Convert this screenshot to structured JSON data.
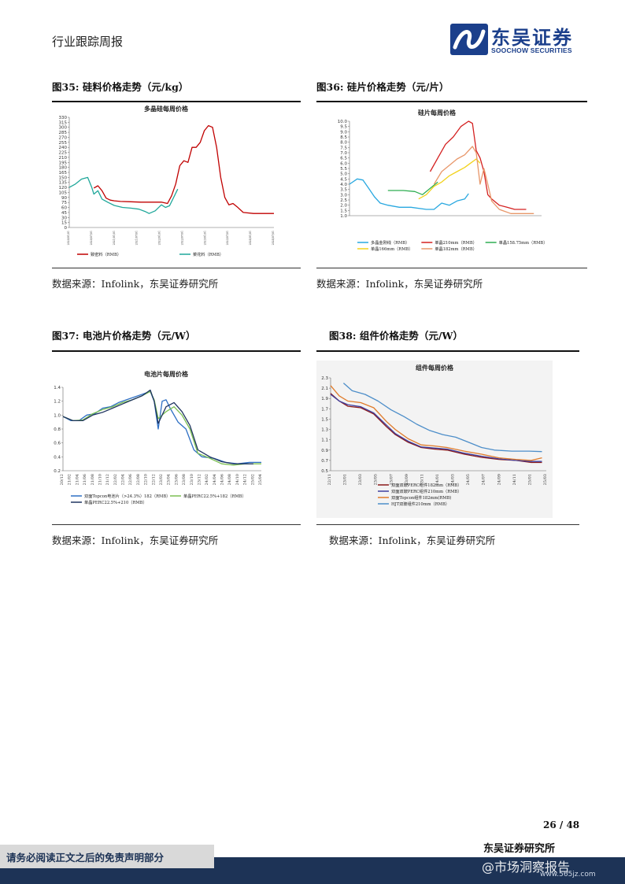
{
  "header": {
    "title": "行业跟踪周报",
    "logo_cn": "东吴证券",
    "logo_en": "SOOCHOW SECURITIES"
  },
  "figures": [
    {
      "label": "图35:  硅料价格走势（元/kg）",
      "source": "数据来源：Infolink，东吴证券研究所"
    },
    {
      "label": "图36:  硅片价格走势（元/片）",
      "source": "数据来源：Infolink，东吴证券研究所"
    },
    {
      "label": "图37:  电池片价格走势（元/W）",
      "source": "数据来源：Infolink，东吴证券研究所"
    },
    {
      "label": "图38:  组件价格走势（元/W）",
      "source": "数据来源：Infolink，东吴证券研究所"
    }
  ],
  "footer": {
    "page": "26  /  48",
    "org": "东吴证券研究所",
    "disclaimer": "请务必阅读正文之后的免责声明部分",
    "watermark": "@市场洞察报告",
    "watermark_url": "www.565jz.com"
  },
  "chart_data": [
    {
      "type": "line",
      "title": "多晶硅每周价格",
      "ylim": [
        0,
        330
      ],
      "yticks": [
        0,
        15,
        30,
        45,
        60,
        75,
        90,
        105,
        120,
        135,
        150,
        165,
        180,
        195,
        210,
        225,
        240,
        255,
        270,
        285,
        300,
        315,
        330
      ],
      "x_labels": [
        "2020/01/01",
        "2020/07/01",
        "2021/01/01",
        "2021/07/01",
        "2022/01/01",
        "2022/07/01",
        "2023/01/01",
        "2023/07/01",
        "2024/01/01",
        "2024/07/01"
      ],
      "series": [
        {
          "name": "致密料（RMB）",
          "color": "#c00000",
          "x": [
            0.12,
            0.14,
            0.16,
            0.18,
            0.2,
            0.22,
            0.25,
            0.3,
            0.35,
            0.4,
            0.45,
            0.48,
            0.5,
            0.52,
            0.54,
            0.56,
            0.58,
            0.6,
            0.62,
            0.64,
            0.66,
            0.68,
            0.7,
            0.72,
            0.74,
            0.76,
            0.78,
            0.8,
            0.82,
            0.85,
            0.9,
            1.0
          ],
          "values": [
            118,
            125,
            110,
            88,
            82,
            80,
            78,
            77,
            76,
            76,
            76,
            72,
            95,
            130,
            185,
            200,
            195,
            240,
            240,
            255,
            290,
            305,
            300,
            240,
            150,
            90,
            68,
            72,
            62,
            45,
            42,
            42
          ]
        },
        {
          "name": "菜花料（RMB）",
          "color": "#1fa79a",
          "x": [
            0.0,
            0.03,
            0.06,
            0.09,
            0.11,
            0.12,
            0.14,
            0.16,
            0.19,
            0.22,
            0.26,
            0.3,
            0.34,
            0.37,
            0.39,
            0.42,
            0.45,
            0.47,
            0.49,
            0.51,
            0.53
          ],
          "values": [
            120,
            130,
            145,
            150,
            120,
            100,
            110,
            85,
            75,
            66,
            60,
            58,
            55,
            48,
            42,
            50,
            68,
            60,
            65,
            90,
            115
          ]
        }
      ]
    },
    {
      "type": "line",
      "title": "硅片每周价格",
      "ylim": [
        1.0,
        10.0
      ],
      "yticks": [
        1.0,
        1.5,
        2.0,
        2.5,
        3.0,
        3.5,
        4.0,
        4.5,
        5.0,
        5.5,
        6.0,
        6.5,
        7.0,
        7.5,
        8.0,
        8.5,
        9.0,
        9.5,
        10.0
      ],
      "series": [
        {
          "name": "多晶金刚线（RMB）",
          "color": "#29a8e0",
          "x": [
            0.0,
            0.04,
            0.07,
            0.1,
            0.13,
            0.16,
            0.2,
            0.26,
            0.32,
            0.4,
            0.44,
            0.48,
            0.52,
            0.56,
            0.6,
            0.62
          ],
          "values": [
            4.0,
            4.5,
            4.4,
            3.6,
            2.8,
            2.2,
            2.0,
            1.8,
            1.8,
            1.6,
            1.6,
            2.2,
            2.0,
            2.4,
            2.6,
            3.1
          ]
        },
        {
          "name": "单晶210mm（RMB）",
          "color": "#d42020",
          "x": [
            0.42,
            0.46,
            0.5,
            0.54,
            0.58,
            0.62,
            0.64,
            0.66,
            0.68,
            0.7,
            0.72,
            0.74,
            0.78,
            0.82,
            0.86,
            0.92
          ],
          "values": [
            5.2,
            6.5,
            7.8,
            8.5,
            9.5,
            10.0,
            9.8,
            7.2,
            6.5,
            5.2,
            3.0,
            2.6,
            2.0,
            1.8,
            1.6,
            1.6
          ]
        },
        {
          "name": "单晶158.75mm（RMB）",
          "color": "#2fae52",
          "x": [
            0.2,
            0.28,
            0.34,
            0.38,
            0.42,
            0.46
          ],
          "values": [
            3.4,
            3.4,
            3.3,
            3.0,
            3.6,
            4.2
          ]
        },
        {
          "name": "单晶166mm（RMB）",
          "color": "#f2d21c",
          "x": [
            0.36,
            0.4,
            0.44,
            0.48,
            0.52,
            0.56,
            0.6,
            0.63,
            0.66,
            0.68
          ],
          "values": [
            2.6,
            3.0,
            3.8,
            4.2,
            4.8,
            5.2,
            5.6,
            6.0,
            6.4,
            6.0
          ]
        },
        {
          "name": "单晶182mm（RMB）",
          "color": "#e8976a",
          "x": [
            0.44,
            0.48,
            0.52,
            0.56,
            0.6,
            0.64,
            0.66,
            0.68,
            0.7,
            0.72,
            0.74,
            0.78,
            0.84,
            0.9,
            0.96
          ],
          "values": [
            4.0,
            5.2,
            5.8,
            6.4,
            6.8,
            7.6,
            7.0,
            4.0,
            5.5,
            4.0,
            2.4,
            1.6,
            1.2,
            1.2,
            1.2
          ]
        }
      ]
    },
    {
      "type": "line",
      "title": "电池片每周价格",
      "ylim": [
        0.2,
        1.4
      ],
      "yticks": [
        0.2,
        0.4,
        0.6,
        0.8,
        1.0,
        1.2,
        1.4
      ],
      "x_labels": [
        "20/12",
        "21/02",
        "21/04",
        "21/06",
        "21/08",
        "21/10",
        "21/12",
        "22/02",
        "22/04",
        "22/06",
        "22/08",
        "22/10",
        "22/12",
        "23/02",
        "23/04",
        "23/06",
        "23/08",
        "23/10",
        "23/12",
        "24/02",
        "24/04",
        "24/06",
        "24/08",
        "24/10",
        "24/12",
        "25/02",
        "25/04"
      ],
      "series": [
        {
          "name": "双面Topcon电池片（>24.3%）182（RMB）",
          "color": "#2e6fc4",
          "x": [
            0.0,
            0.04,
            0.08,
            0.12,
            0.16,
            0.2,
            0.24,
            0.28,
            0.32,
            0.36,
            0.4,
            0.44,
            0.46,
            0.48,
            0.5,
            0.52,
            0.54,
            0.58,
            0.62,
            0.66,
            0.7,
            0.76,
            0.82,
            0.88,
            0.94,
            1.0
          ],
          "values": [
            0.98,
            0.92,
            0.92,
            1.0,
            1.02,
            1.1,
            1.12,
            1.18,
            1.22,
            1.26,
            1.3,
            1.34,
            1.2,
            0.8,
            1.2,
            1.22,
            1.1,
            0.9,
            0.8,
            0.5,
            0.4,
            0.38,
            0.32,
            0.3,
            0.32,
            0.32
          ]
        },
        {
          "name": "单晶PERC22.5%+182（RMB）",
          "color": "#7bbf52",
          "x": [
            0.0,
            0.05,
            0.1,
            0.15,
            0.2,
            0.25,
            0.3,
            0.35,
            0.4,
            0.44,
            0.46,
            0.48,
            0.52,
            0.56,
            0.6,
            0.64,
            0.68,
            0.74,
            0.8,
            0.86,
            0.92,
            1.0
          ],
          "values": [
            0.98,
            0.92,
            0.93,
            1.02,
            1.08,
            1.12,
            1.18,
            1.22,
            1.28,
            1.34,
            1.22,
            0.95,
            1.05,
            1.12,
            1.0,
            0.8,
            0.45,
            0.38,
            0.3,
            0.28,
            0.3,
            0.3
          ]
        },
        {
          "name": "单晶PERC22.5%+210（RMB）",
          "color": "#1f3460",
          "x": [
            0.0,
            0.05,
            0.1,
            0.15,
            0.2,
            0.25,
            0.3,
            0.35,
            0.4,
            0.44,
            0.46,
            0.48,
            0.52,
            0.56,
            0.6,
            0.64,
            0.68,
            0.74,
            0.8,
            0.86,
            0.92,
            0.96
          ],
          "values": [
            0.98,
            0.92,
            0.92,
            1.0,
            1.04,
            1.1,
            1.16,
            1.22,
            1.28,
            1.36,
            1.2,
            0.88,
            1.12,
            1.18,
            1.05,
            0.85,
            0.5,
            0.4,
            0.33,
            0.3,
            0.3,
            0.3
          ]
        }
      ]
    },
    {
      "type": "line",
      "title": "组件每周价格",
      "ylim": [
        0.5,
        2.3
      ],
      "yticks": [
        0.5,
        0.7,
        0.9,
        1.1,
        1.3,
        1.5,
        1.7,
        1.9,
        2.1,
        2.3
      ],
      "x_labels": [
        "22/11",
        "23/01",
        "23/03",
        "23/05",
        "23/07",
        "23/09",
        "23/11",
        "24/01",
        "24/03",
        "24/05",
        "24/07",
        "24/09",
        "24/11",
        "25/01",
        "25/03"
      ],
      "series": [
        {
          "name": "双面双玻PERC组件182mm（RMB）",
          "color": "#8b1a1a",
          "x": [
            0.0,
            0.04,
            0.08,
            0.14,
            0.2,
            0.26,
            0.3,
            0.36,
            0.42,
            0.48,
            0.54,
            0.62,
            0.7,
            0.78,
            0.86,
            0.93,
            0.98
          ],
          "values": [
            2.0,
            1.85,
            1.75,
            1.72,
            1.6,
            1.35,
            1.2,
            1.05,
            0.95,
            0.92,
            0.9,
            0.82,
            0.76,
            0.72,
            0.7,
            0.66,
            0.66
          ]
        },
        {
          "name": "双面双玻PERC组件210mm（RMB）",
          "color": "#3e3e9e",
          "x": [
            0.0,
            0.04,
            0.08,
            0.14,
            0.2,
            0.26,
            0.3,
            0.36,
            0.42,
            0.48,
            0.54,
            0.62,
            0.7,
            0.78,
            0.86,
            0.93,
            0.98
          ],
          "values": [
            1.98,
            1.85,
            1.78,
            1.74,
            1.62,
            1.38,
            1.22,
            1.07,
            0.96,
            0.94,
            0.92,
            0.84,
            0.78,
            0.73,
            0.7,
            0.68,
            0.68
          ]
        },
        {
          "name": "双面Topcon组件182mm(RMB)",
          "color": "#e07b2a",
          "x": [
            0.0,
            0.04,
            0.08,
            0.14,
            0.2,
            0.26,
            0.3,
            0.36,
            0.42,
            0.48,
            0.54,
            0.62,
            0.7,
            0.78,
            0.86,
            0.93,
            0.98
          ],
          "values": [
            2.15,
            1.95,
            1.85,
            1.82,
            1.72,
            1.45,
            1.3,
            1.12,
            1.0,
            0.98,
            0.95,
            0.88,
            0.82,
            0.75,
            0.72,
            0.7,
            0.75
          ]
        },
        {
          "name": "HJT双玻组件210mm（RMB）",
          "color": "#4d8ec9",
          "x": [
            0.06,
            0.1,
            0.16,
            0.22,
            0.28,
            0.34,
            0.4,
            0.46,
            0.52,
            0.58,
            0.64,
            0.7,
            0.76,
            0.84,
            0.92,
            0.98
          ],
          "values": [
            2.2,
            2.05,
            1.98,
            1.85,
            1.68,
            1.55,
            1.4,
            1.28,
            1.2,
            1.15,
            1.05,
            0.95,
            0.9,
            0.88,
            0.88,
            0.87
          ]
        }
      ]
    }
  ]
}
